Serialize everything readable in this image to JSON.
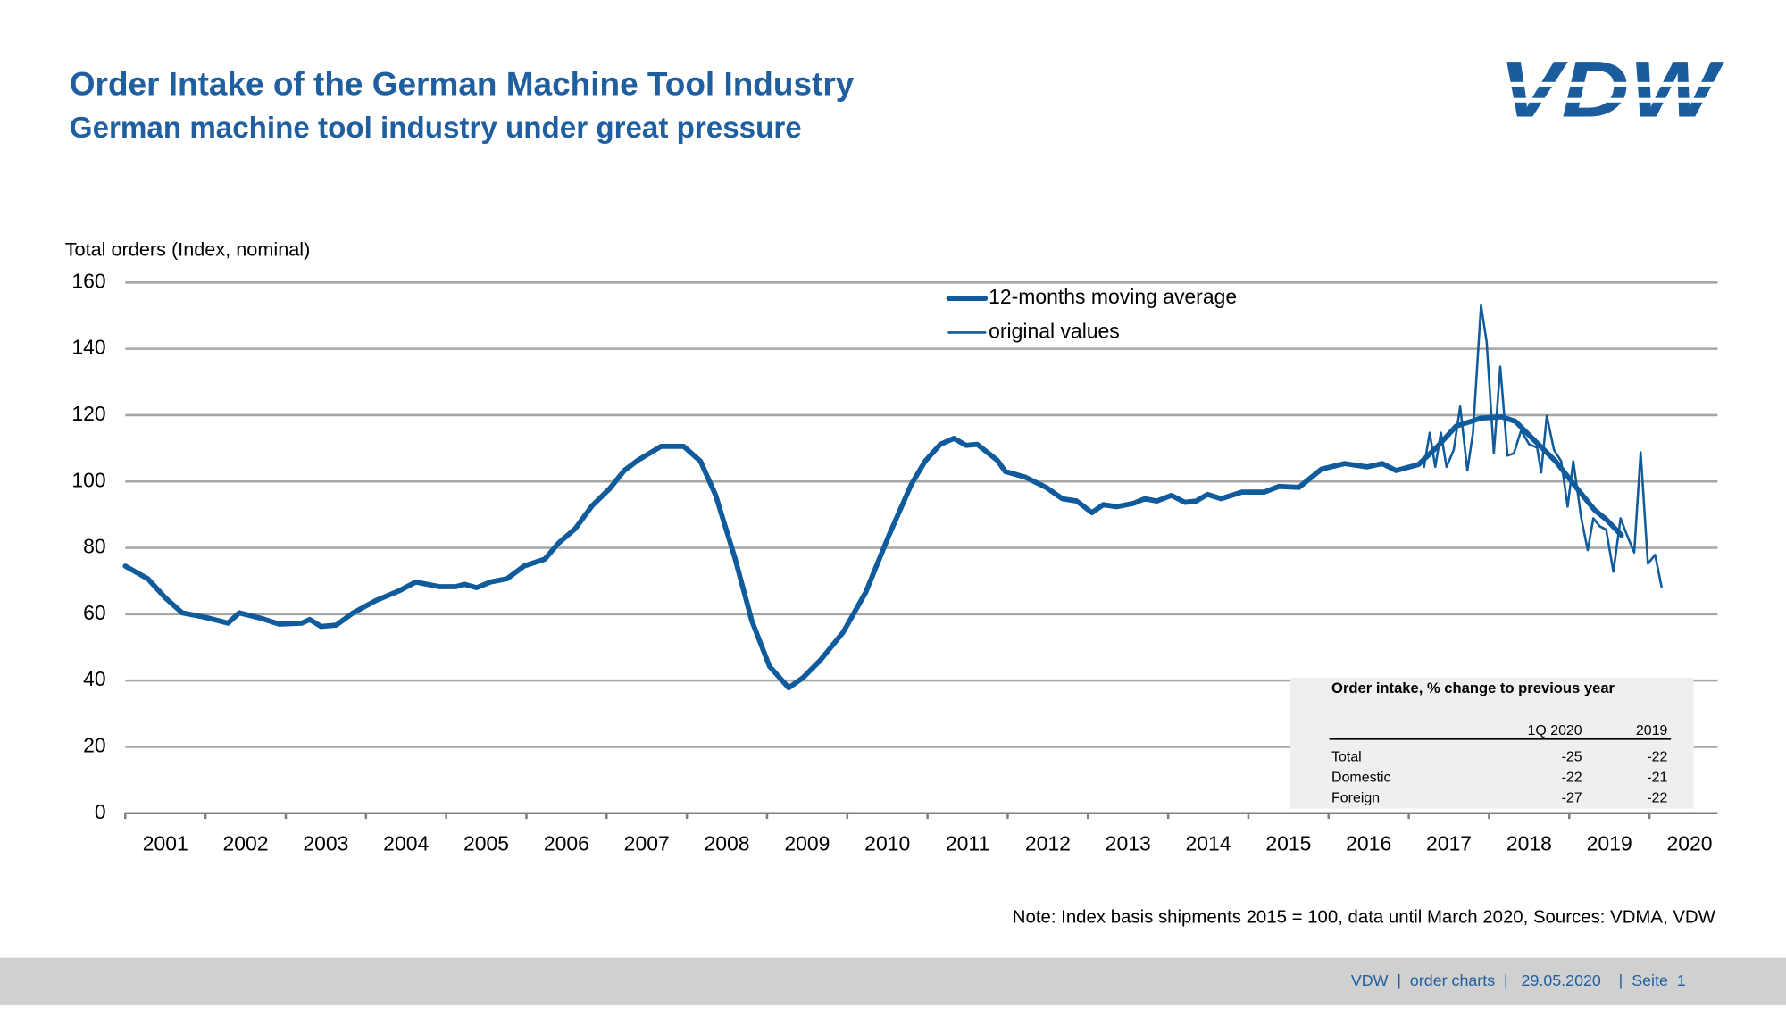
{
  "chart_data": {
    "type": "line",
    "title": "Order Intake of the German Machine Tool Industry",
    "subtitle": "German machine tool industry under great pressure",
    "ylabel": "Total orders (Index, nominal)",
    "note": "Note: Index basis shipments 2015 = 100, data until March 2020, Sources: VDMA, VDW",
    "xlim": [
      2001,
      2020.85
    ],
    "xticks": [
      2001,
      2002,
      2003,
      2004,
      2005,
      2006,
      2007,
      2008,
      2009,
      2010,
      2011,
      2012,
      2013,
      2014,
      2015,
      2016,
      2017,
      2018,
      2019,
      2020
    ],
    "ylim": [
      0,
      160
    ],
    "yticks": [
      0,
      20,
      40,
      60,
      80,
      100,
      120,
      140,
      160
    ],
    "grid": true,
    "legend": "top center",
    "series": [
      {
        "name": "12-months moving average",
        "color": "#0f5b9c",
        "width": 4.5,
        "x": [
          2001.0,
          2001.28,
          2001.5,
          2001.71,
          2001.99,
          2002.28,
          2002.42,
          2002.7,
          2002.92,
          2003.2,
          2003.3,
          2003.44,
          2003.63,
          2003.84,
          2004.13,
          2004.41,
          2004.62,
          2004.91,
          2005.12,
          2005.23,
          2005.38,
          2005.55,
          2005.76,
          2005.97,
          2006.23,
          2006.4,
          2006.61,
          2006.82,
          2007.04,
          2007.22,
          2007.39,
          2007.68,
          2007.96,
          2008.17,
          2008.36,
          2008.6,
          2008.81,
          2009.03,
          2009.27,
          2009.45,
          2009.66,
          2009.95,
          2010.23,
          2010.52,
          2010.8,
          2010.97,
          2011.16,
          2011.33,
          2011.48,
          2011.62,
          2011.87,
          2011.97,
          2012.22,
          2012.48,
          2012.68,
          2012.86,
          2013.05,
          2013.19,
          2013.36,
          2013.57,
          2013.71,
          2013.86,
          2014.04,
          2014.21,
          2014.35,
          2014.49,
          2014.66,
          2014.92,
          2015.2,
          2015.38,
          2015.63,
          2015.91,
          2016.2,
          2016.48,
          2016.67,
          2016.84,
          2017.12,
          2017.36,
          2017.59,
          2017.9,
          2018.16,
          2018.33,
          2018.54,
          2018.83,
          2019.11,
          2019.32,
          2019.46,
          2019.65
        ],
        "values": [
          74.5,
          70.7,
          64.9,
          60.4,
          59.1,
          57.3,
          60.4,
          58.7,
          57.0,
          57.3,
          58.4,
          56.3,
          56.7,
          60.4,
          64.2,
          67.0,
          69.7,
          68.3,
          68.3,
          69.0,
          68.0,
          69.7,
          70.7,
          74.5,
          76.6,
          81.4,
          85.8,
          92.7,
          97.9,
          103.3,
          106.4,
          110.6,
          110.6,
          106.1,
          95.8,
          76.9,
          58.0,
          44.3,
          37.8,
          40.9,
          46.0,
          54.6,
          66.6,
          83.8,
          99.2,
          106.1,
          111.2,
          113.0,
          110.9,
          111.2,
          106.4,
          103.0,
          101.3,
          98.2,
          94.8,
          94.1,
          90.6,
          93.0,
          92.4,
          93.4,
          94.8,
          94.1,
          95.8,
          93.7,
          94.1,
          96.1,
          94.8,
          96.8,
          96.8,
          98.5,
          98.2,
          103.7,
          105.4,
          104.4,
          105.4,
          103.3,
          105.1,
          110.6,
          116.7,
          119.1,
          119.5,
          118.1,
          113.0,
          106.1,
          97.5,
          91.3,
          88.6,
          83.8
        ]
      },
      {
        "name": "original values",
        "color": "#0f5b9c",
        "width": 2,
        "x": [
          2017.19,
          2017.26,
          2017.33,
          2017.4,
          2017.47,
          2017.56,
          2017.64,
          2017.73,
          2017.8,
          2017.9,
          2017.97,
          2018.06,
          2018.14,
          2018.23,
          2018.31,
          2018.4,
          2018.5,
          2018.6,
          2018.65,
          2018.72,
          2018.81,
          2018.9,
          2018.98,
          2019.05,
          2019.15,
          2019.23,
          2019.3,
          2019.38,
          2019.46,
          2019.55,
          2019.64,
          2019.72,
          2019.81,
          2019.89,
          2019.98,
          2020.07,
          2020.15
        ],
        "values": [
          104.4,
          114.7,
          104.4,
          114.7,
          104.4,
          109.5,
          122.6,
          103.3,
          114.7,
          153.1,
          142.1,
          108.5,
          134.6,
          107.8,
          108.5,
          115.4,
          111.2,
          110.2,
          102.7,
          119.8,
          109.5,
          106.1,
          92.4,
          106.1,
          88.9,
          79.3,
          88.9,
          86.5,
          85.5,
          72.8,
          88.9,
          83.8,
          78.6,
          108.8,
          75.2,
          77.9,
          68.3
        ]
      }
    ]
  },
  "table": {
    "title": "Order intake, % change to previous year",
    "columns": [
      "1Q 2020",
      "2019"
    ],
    "rows": [
      [
        "Total",
        -25,
        -22
      ],
      [
        "Domestic",
        -22,
        -21
      ],
      [
        "Foreign",
        -27,
        -22
      ]
    ]
  },
  "logo": "VDW",
  "footer": "VDW  |  order charts  |   29.05.2020    |  Seite  1"
}
